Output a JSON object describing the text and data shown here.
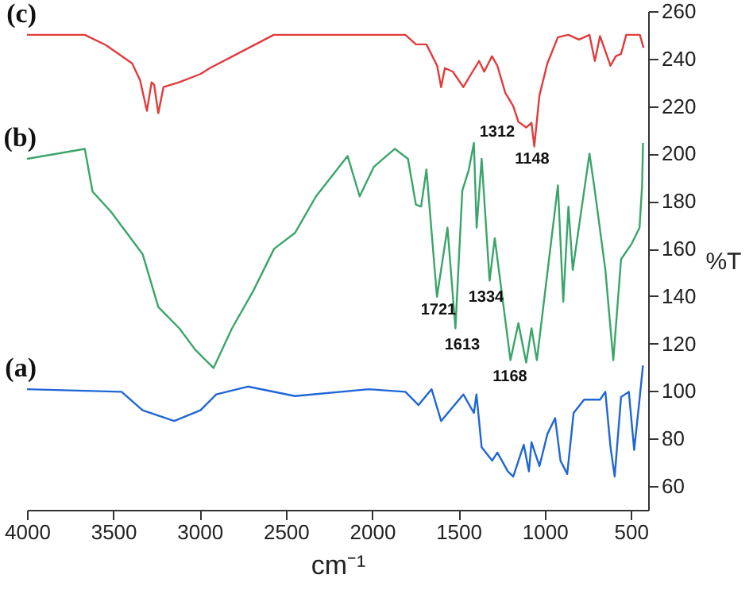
{
  "chart_data": {
    "type": "line",
    "xlabel": "cm⁻¹",
    "ylabel": "%T",
    "xlim": [
      4000,
      400
    ],
    "xticks": [
      4000,
      3500,
      3000,
      2500,
      2000,
      1500,
      1000,
      500
    ],
    "ylim": [
      50,
      260
    ],
    "yticks": [
      60,
      80,
      100,
      120,
      140,
      160,
      180,
      200,
      220,
      240,
      260
    ],
    "grid": false,
    "marker": "none",
    "line_style": "solid",
    "series": [
      {
        "name": "(c)",
        "color": "#e03c3c",
        "x": [
          4000,
          3665,
          3543,
          3391,
          3345,
          3305,
          3278,
          3263,
          3239,
          3209,
          3119,
          2995,
          2940,
          2782,
          2570,
          1807,
          1746,
          1685,
          1623,
          1600,
          1578,
          1532,
          1471,
          1426,
          1380,
          1350,
          1305,
          1274,
          1228,
          1182,
          1152,
          1107,
          1076,
          1060,
          1030,
          984,
          923,
          862,
          801,
          740,
          709,
          679,
          618,
          588,
          557,
          527,
          448,
          427
        ],
        "values": [
          250,
          250,
          245.7,
          238,
          231,
          218,
          230,
          229,
          217,
          228,
          230,
          233.5,
          236,
          242,
          250,
          250,
          246,
          246,
          237,
          228,
          236,
          234.5,
          228,
          233.5,
          239,
          234.5,
          241,
          237,
          225.6,
          220,
          213.4,
          211,
          213,
          203,
          224.5,
          238,
          249,
          250,
          248,
          250,
          239,
          249.5,
          237,
          241,
          242,
          250,
          250,
          244.6
        ]
      },
      {
        "name": "(b)",
        "color": "#3aa56a",
        "x": [
          4000,
          3665,
          3620,
          3513,
          3330,
          3239,
          3117,
          3026,
          2919,
          2812,
          2690,
          2568,
          2447,
          2325,
          2142,
          2072,
          1990,
          1868,
          1792,
          1746,
          1716,
          1685,
          1624,
          1563,
          1517,
          1477,
          1440,
          1410,
          1394,
          1365,
          1319,
          1289,
          1198,
          1152,
          1107,
          1076,
          1045,
          923,
          892,
          862,
          837,
          740,
          709,
          648,
          602,
          557,
          496,
          450,
          435,
          430
        ],
        "values": [
          197.8,
          202,
          184,
          175.5,
          157.7,
          135.4,
          126.4,
          117.5,
          109.7,
          126.4,
          142,
          159.9,
          166.6,
          182,
          199,
          182,
          194.4,
          202,
          197.8,
          178.5,
          177.7,
          193.3,
          139.7,
          168.8,
          126.4,
          184.4,
          193,
          204.5,
          168.8,
          197.8,
          146.5,
          164.4,
          113,
          128.6,
          112,
          126.4,
          113,
          186.6,
          137.6,
          177.7,
          151,
          200,
          184.4,
          151,
          113,
          155.5,
          162,
          168.8,
          186.6,
          204.5
        ]
      },
      {
        "name": "(a)",
        "color": "#1f66d6",
        "x": [
          4000,
          3452,
          3330,
          3147,
          2995,
          2903,
          2720,
          2447,
          2020,
          1807,
          1731,
          1655,
          1600,
          1471,
          1410,
          1395,
          1365,
          1304,
          1274,
          1213,
          1182,
          1121,
          1091,
          1076,
          1030,
          984,
          939,
          908,
          869,
          832,
          771,
          679,
          648,
          618,
          594,
          557,
          512,
          481,
          450,
          430
        ],
        "values": [
          100.8,
          99.7,
          91.9,
          87.4,
          91.9,
          98.6,
          101.9,
          97.9,
          100.8,
          99.7,
          94.1,
          100.8,
          87.4,
          98.6,
          90.8,
          98.6,
          76.3,
          70.7,
          74.1,
          66.2,
          64,
          77.4,
          66.2,
          78.5,
          68.4,
          81.9,
          88.6,
          70.7,
          65.1,
          90.8,
          96.4,
          96.4,
          99.7,
          76.3,
          64,
          97.5,
          99.7,
          75.2,
          96.4,
          110.8
        ]
      }
    ],
    "annotations": [
      "1312",
      "1148",
      "1721",
      "1613",
      "1334",
      "1168"
    ]
  }
}
